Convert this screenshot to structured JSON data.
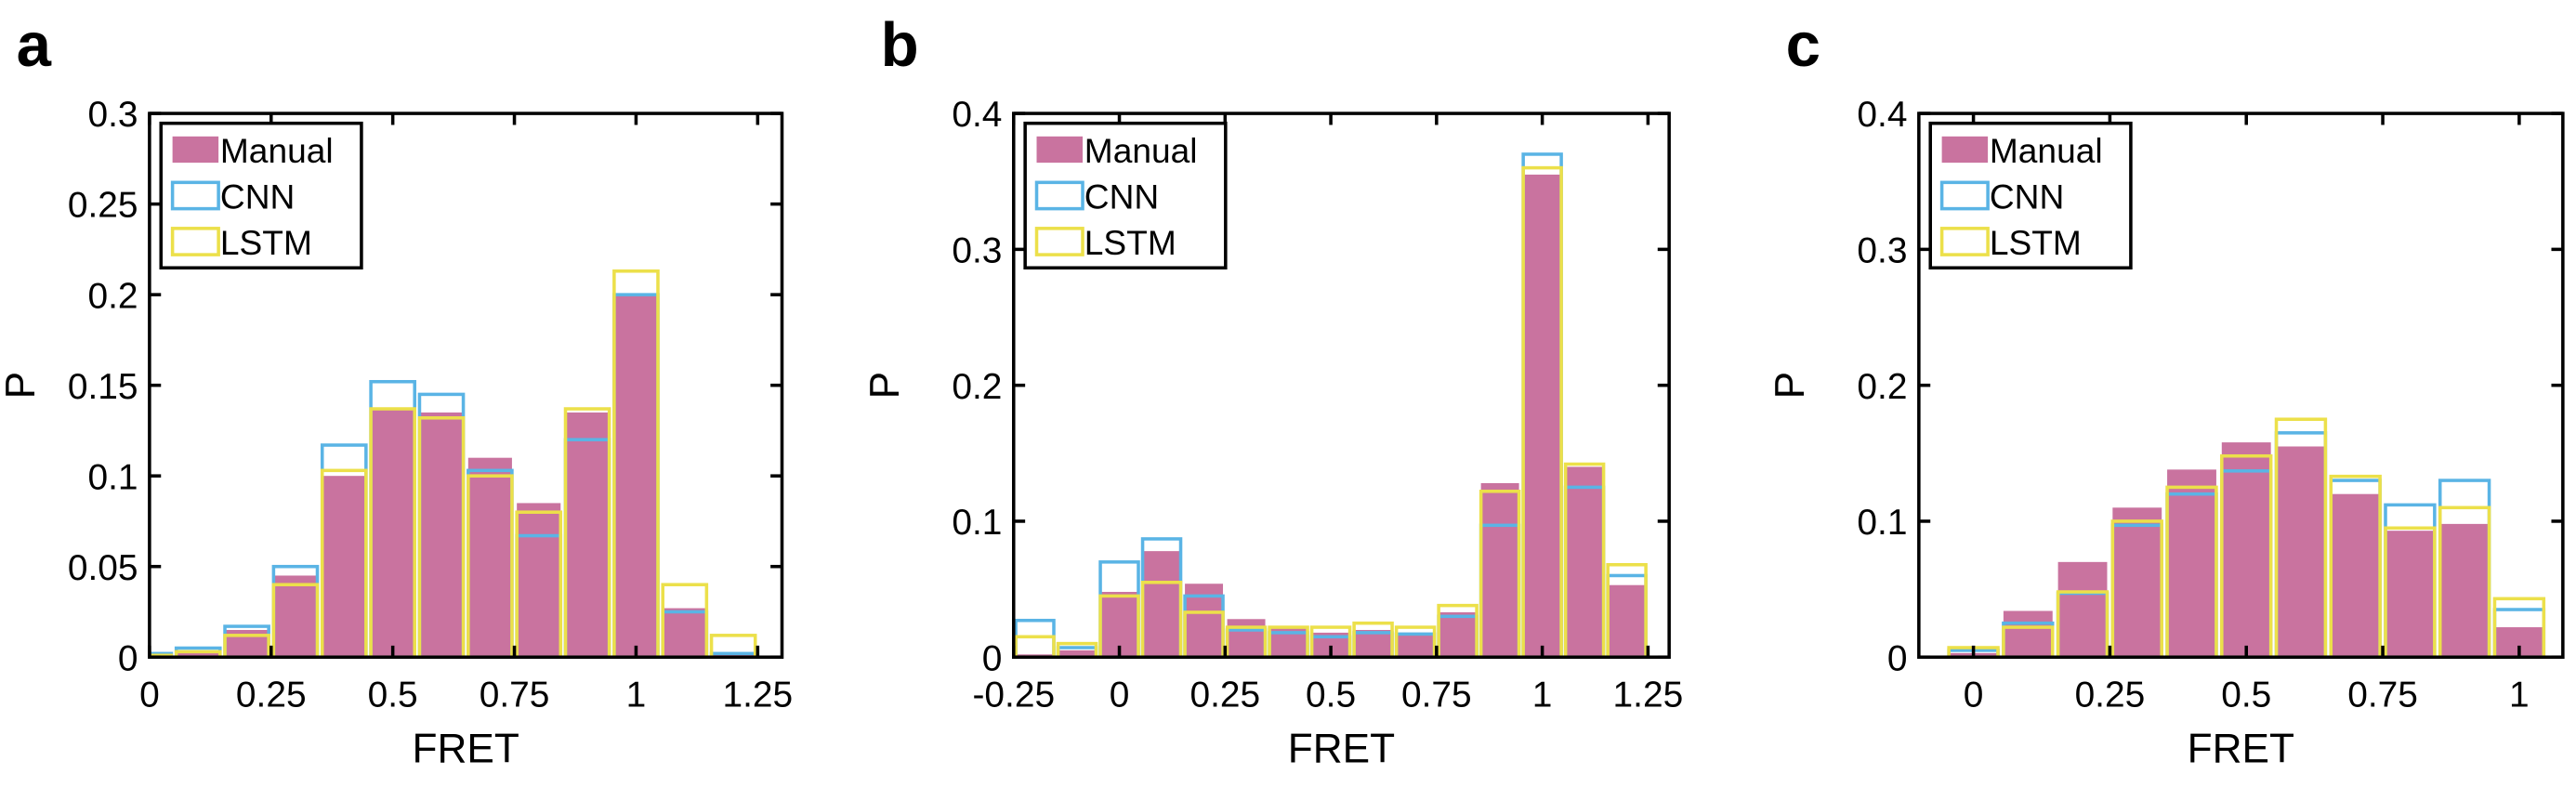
{
  "chart_data": [
    {
      "type": "histogram",
      "panel": "a",
      "xlabel": "FRET",
      "ylabel": "P",
      "bins": [
        -0.05,
        0.05,
        0.15,
        0.25,
        0.35,
        0.45,
        0.55,
        0.65,
        0.75,
        0.85,
        0.95,
        1.05,
        1.15,
        1.25
      ],
      "series": [
        {
          "name": "Manual",
          "color": "#c9739f",
          "values": [
            0.001,
            0.003,
            0.015,
            0.045,
            0.1,
            0.137,
            0.135,
            0.11,
            0.085,
            0.135,
            0.2,
            0.027,
            0.002
          ]
        },
        {
          "name": "CNN",
          "color": "#5ab4e5",
          "values": [
            0.002,
            0.005,
            0.017,
            0.05,
            0.117,
            0.152,
            0.145,
            0.103,
            0.067,
            0.12,
            0.2,
            0.025,
            0.002
          ]
        },
        {
          "name": "LSTM",
          "color": "#ece04a",
          "values": [
            0.001,
            0.003,
            0.012,
            0.04,
            0.103,
            0.137,
            0.132,
            0.1,
            0.08,
            0.137,
            0.213,
            0.04,
            0.012
          ]
        }
      ],
      "xlim": [
        0,
        1.3
      ],
      "xticks": [
        0,
        0.25,
        0.5,
        0.75,
        1,
        1.25
      ],
      "ylim": [
        0,
        0.3
      ],
      "yticks": [
        0,
        0.05,
        0.1,
        0.15,
        0.2,
        0.25,
        0.3
      ],
      "legend": "upper left"
    },
    {
      "type": "histogram",
      "panel": "b",
      "xlabel": "FRET",
      "ylabel": "P",
      "bins": [
        -0.25,
        -0.15,
        -0.05,
        0.05,
        0.15,
        0.25,
        0.35,
        0.45,
        0.55,
        0.65,
        0.75,
        0.85,
        0.95,
        1.05,
        1.15,
        1.25
      ],
      "series": [
        {
          "name": "Manual",
          "color": "#c9739f",
          "values": [
            0.002,
            0.005,
            0.048,
            0.078,
            0.054,
            0.028,
            0.022,
            0.018,
            0.02,
            0.018,
            0.033,
            0.128,
            0.355,
            0.14,
            0.053
          ]
        },
        {
          "name": "CNN",
          "color": "#5ab4e5",
          "values": [
            0.027,
            0.007,
            0.07,
            0.087,
            0.045,
            0.02,
            0.018,
            0.015,
            0.018,
            0.017,
            0.03,
            0.097,
            0.37,
            0.125,
            0.06
          ]
        },
        {
          "name": "LSTM",
          "color": "#ece04a",
          "values": [
            0.015,
            0.01,
            0.045,
            0.055,
            0.033,
            0.022,
            0.022,
            0.022,
            0.025,
            0.022,
            0.038,
            0.122,
            0.36,
            0.142,
            0.068
          ]
        }
      ],
      "xlim": [
        -0.25,
        1.3
      ],
      "xticks": [
        -0.25,
        0,
        0.25,
        0.5,
        0.75,
        1,
        1.25
      ],
      "ylim": [
        0,
        0.4
      ],
      "yticks": [
        0,
        0.1,
        0.2,
        0.3,
        0.4
      ],
      "legend": "upper left"
    },
    {
      "type": "histogram",
      "panel": "c",
      "xlabel": "FRET",
      "ylabel": "P",
      "bins": [
        -0.05,
        0.05,
        0.15,
        0.25,
        0.35,
        0.45,
        0.55,
        0.65,
        0.75,
        0.85,
        0.95,
        1.05
      ],
      "series": [
        {
          "name": "Manual",
          "color": "#c9739f",
          "values": [
            0.003,
            0.034,
            0.07,
            0.11,
            0.138,
            0.158,
            0.155,
            0.12,
            0.093,
            0.098,
            0.022
          ]
        },
        {
          "name": "CNN",
          "color": "#5ab4e5",
          "values": [
            0.005,
            0.025,
            0.047,
            0.097,
            0.12,
            0.137,
            0.165,
            0.13,
            0.112,
            0.13,
            0.035
          ]
        },
        {
          "name": "LSTM",
          "color": "#ece04a",
          "values": [
            0.007,
            0.022,
            0.048,
            0.1,
            0.125,
            0.148,
            0.175,
            0.133,
            0.095,
            0.11,
            0.043
          ]
        }
      ],
      "xlim": [
        -0.1,
        1.08
      ],
      "xticks": [
        0,
        0.25,
        0.5,
        0.75,
        1
      ],
      "ylim": [
        0,
        0.4
      ],
      "yticks": [
        0,
        0.1,
        0.2,
        0.3,
        0.4
      ],
      "legend": "upper left"
    }
  ]
}
